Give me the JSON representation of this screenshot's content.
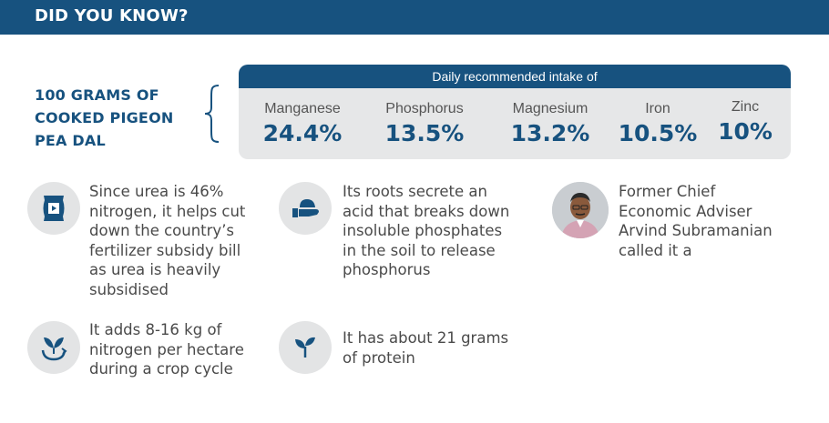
{
  "header": {
    "title": "DID YOU KNOW?"
  },
  "intro": {
    "lines": [
      "100 GRAMS OF",
      "COOKED PIGEON",
      "PEA DAL"
    ]
  },
  "intake": {
    "heading": "Daily recommended intake of",
    "nutrients": [
      {
        "name": "Manganese",
        "value": "24.4%"
      },
      {
        "name": "Phosphorus",
        "value": "13.5%"
      },
      {
        "name": "Magnesium",
        "value": "13.2%"
      },
      {
        "name": "Iron",
        "value": "10.5%"
      },
      {
        "name": "Zinc",
        "value": "10%"
      }
    ]
  },
  "facts": {
    "urea": {
      "icon": "fertilizer-bag-icon",
      "lines": [
        "Since urea is 46%",
        "nitrogen, it helps cut",
        "down the country’s",
        "fertilizer subsidy bill",
        "as urea is heavily",
        "subsidised"
      ]
    },
    "roots": {
      "icon": "soil-in-hand-icon",
      "lines": [
        "Its roots secrete an",
        "acid that breaks down",
        "insoluble phosphates",
        "in the soil to release",
        "phosphorus"
      ]
    },
    "adviser": {
      "icon": "person-photo",
      "lines": [
        "Former Chief",
        "Economic Adviser",
        "Arvind Subramanian",
        "called it a"
      ]
    },
    "nitrogen": {
      "icon": "leaf-recycle-icon",
      "lines": [
        "It adds 8-16 kg of",
        "nitrogen per hectare",
        "during a crop cycle"
      ]
    },
    "protein": {
      "icon": "sprout-icon",
      "lines": [
        "It has about 21 grams",
        "of protein"
      ]
    }
  },
  "colors": {
    "brand": "#17527f",
    "panel": "#e6e7e8",
    "icon_bg": "#e3e4e5"
  }
}
